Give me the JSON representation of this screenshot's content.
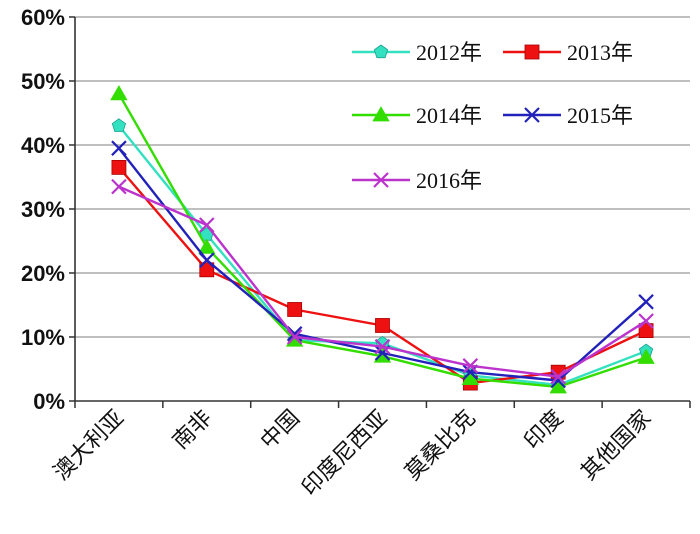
{
  "chart_data": {
    "type": "line",
    "categories": [
      "澳大利亚",
      "南非",
      "中国",
      "印度尼西亚",
      "莫桑比克",
      "印度",
      "其他国家"
    ],
    "ylim": [
      0,
      60
    ],
    "yticks": [
      0,
      10,
      20,
      30,
      40,
      50,
      60
    ],
    "ytick_labels": [
      "0%",
      "10%",
      "20%",
      "30%",
      "40%",
      "50%",
      "60%"
    ],
    "grid": true,
    "legend_position": "top-right",
    "series": [
      {
        "name": "2012年",
        "color": "#33e0c0",
        "marker": "pentagon",
        "values": [
          43,
          26,
          9.5,
          9,
          4,
          2.5,
          7.8
        ]
      },
      {
        "name": "2013年",
        "color": "#ee1111",
        "marker": "square",
        "values": [
          36.5,
          20.5,
          14.3,
          11.8,
          2.8,
          4.5,
          11
        ]
      },
      {
        "name": "2014年",
        "color": "#33dd00",
        "marker": "triangle",
        "values": [
          48,
          24,
          9.5,
          7,
          3.5,
          2.2,
          6.8
        ]
      },
      {
        "name": "2015年",
        "color": "#2222bb",
        "marker": "x",
        "values": [
          39.5,
          22,
          10.5,
          7.5,
          4.5,
          3.2,
          15.5
        ]
      },
      {
        "name": "2016年",
        "color": "#bb33cc",
        "marker": "x",
        "values": [
          33.5,
          27.5,
          10,
          8.5,
          5.5,
          3.8,
          12.5
        ]
      }
    ]
  }
}
